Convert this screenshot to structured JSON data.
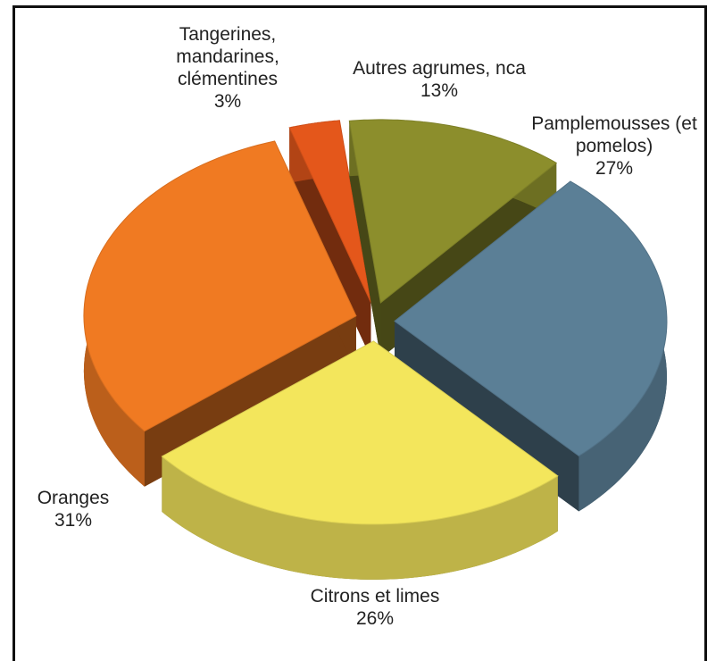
{
  "chart_data": {
    "type": "pie",
    "categories": [
      "Tangerines, mandarines, clémentines",
      "Autres agrumes, nca",
      "Pamplemousses (et pomelos)",
      "Citrons et limes",
      "Oranges"
    ],
    "values": [
      3,
      13,
      27,
      26,
      31
    ],
    "value_labels": [
      "3%",
      "13%",
      "27%",
      "26%",
      "31%"
    ],
    "colors": [
      "#e4571b",
      "#8c8e2c",
      "#5b7f96",
      "#f3e65c",
      "#f07a22"
    ]
  }
}
